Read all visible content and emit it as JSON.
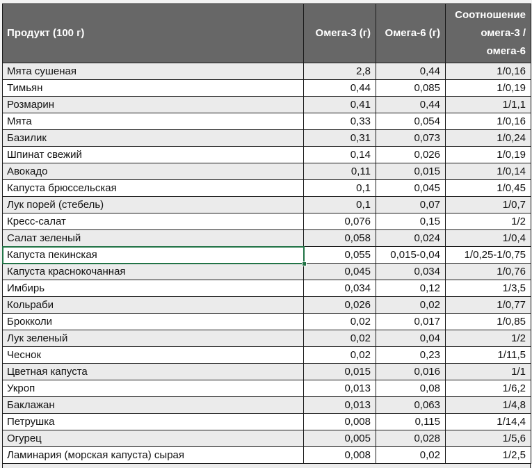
{
  "app": {
    "kind": "spreadsheet-table",
    "language": "ru"
  },
  "colors": {
    "page_bg": "#f2f2f2",
    "header_bg": "#676767",
    "header_text": "#ffffff",
    "stripe": "#ebebeb",
    "row_white": "#ffffff",
    "border": "#1a1a1a",
    "selection_green": "#217346",
    "cell_text": "#111111"
  },
  "table": {
    "columns": [
      {
        "id": "product",
        "label": "Продукт (100 г)",
        "align": "left"
      },
      {
        "id": "omega3",
        "label": "Омега-3 (г)",
        "align": "right"
      },
      {
        "id": "omega6",
        "label": "Омега-6 (г)",
        "align": "right"
      },
      {
        "id": "ratio",
        "label": "Соотношение омега-3 / омега-6",
        "align": "right"
      }
    ],
    "rows": [
      [
        "Мята сушеная",
        "2,8",
        "0,44",
        "1/0,16"
      ],
      [
        "Тимьян",
        "0,44",
        "0,085",
        "1/0,19"
      ],
      [
        "Розмарин",
        "0,41",
        "0,44",
        "1/1,1"
      ],
      [
        "Мята",
        "0,33",
        "0,054",
        "1/0,16"
      ],
      [
        "Базилик",
        "0,31",
        "0,073",
        "1/0,24"
      ],
      [
        "Шпинат свежий",
        "0,14",
        "0,026",
        "1/0,19"
      ],
      [
        "Авокадо",
        "0,11",
        "0,015",
        "1/0,14"
      ],
      [
        "Капуста брюссельская",
        "0,1",
        "0,045",
        "1/0,45"
      ],
      [
        "Лук порей (стебель)",
        "0,1",
        "0,07",
        "1/0,7"
      ],
      [
        "Кресс-салат",
        "0,076",
        "0,15",
        "1/2"
      ],
      [
        "Салат зеленый",
        "0,058",
        "0,024",
        "1/0,4"
      ],
      [
        "Капуста пекинская",
        "0,055",
        "0,015-0,04",
        "1/0,25-1/0,75"
      ],
      [
        "Капуста краснокочанная",
        "0,045",
        "0,034",
        "1/0,76"
      ],
      [
        "Имбирь",
        "0,034",
        "0,12",
        "1/3,5"
      ],
      [
        "Кольраби",
        "0,026",
        "0,02",
        "1/0,77"
      ],
      [
        "Брокколи",
        "0,02",
        "0,017",
        "1/0,85"
      ],
      [
        "Лук зеленый",
        "0,02",
        "0,04",
        "1/2"
      ],
      [
        "Чеснок",
        "0,02",
        "0,23",
        "1/11,5"
      ],
      [
        "Цветная капуста",
        "0,015",
        "0,016",
        "1/1"
      ],
      [
        "Укроп",
        "0,013",
        "0,08",
        "1/6,2"
      ],
      [
        "Баклажан",
        "0,013",
        "0,063",
        "1/4,8"
      ],
      [
        "Петрушка",
        "0,008",
        "0,115",
        "1/14,4"
      ],
      [
        "Огурец",
        "0,005",
        "0,028",
        "1/5,6"
      ],
      [
        "Ламинария (морская капуста) сырая",
        "0,008",
        "0,02",
        "1/2,5"
      ]
    ],
    "selection": {
      "row_index": 11,
      "col_index": 0,
      "selected_value": "Капуста пекинская"
    }
  }
}
